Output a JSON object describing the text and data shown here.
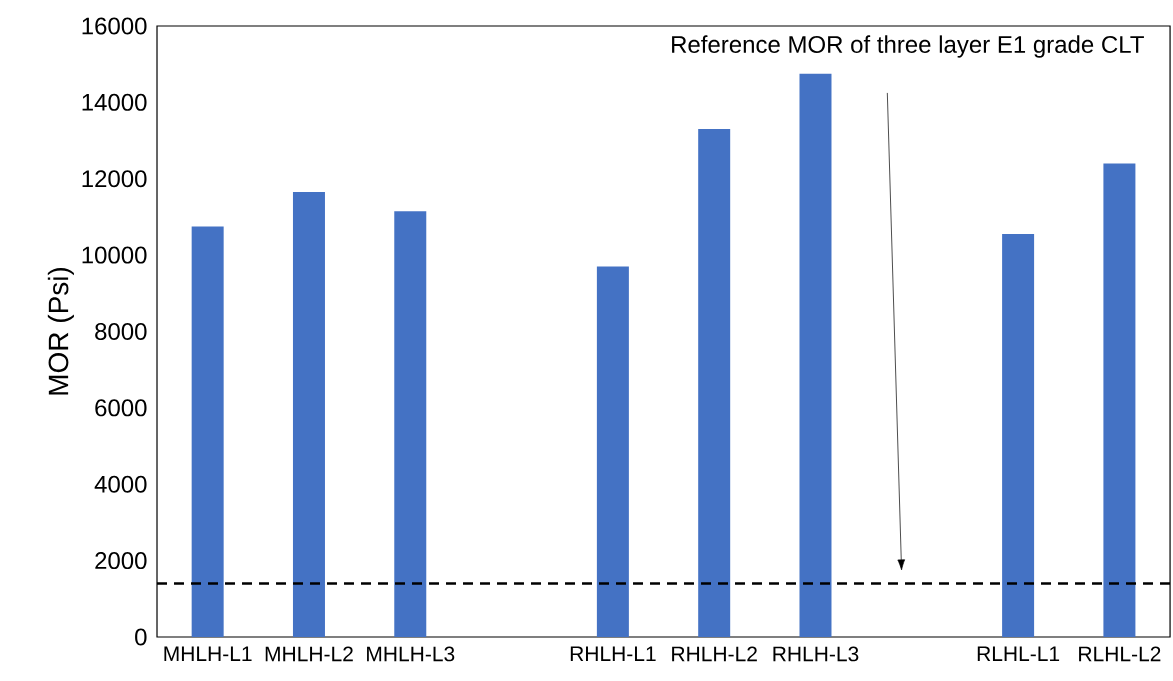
{
  "chart_data": {
    "type": "bar",
    "ylabel": "MOR (Psi)",
    "categories": [
      "MHLH-L1",
      "MHLH-L2",
      "MHLH-L3",
      null,
      "RHLH-L1",
      "RHLH-L2",
      "RHLH-L3",
      null,
      "RLHL-L1",
      "RLHL-L2"
    ],
    "values": [
      10750,
      11650,
      11150,
      null,
      9700,
      13300,
      14750,
      null,
      10550,
      12400
    ],
    "color": "#4472c4",
    "ylim": [
      0,
      16000
    ],
    "yticks": [
      0,
      2000,
      4000,
      6000,
      8000,
      10000,
      12000,
      14000,
      16000
    ],
    "ref_lines": [
      {
        "axis": "y",
        "value": 1400,
        "label": "Reference MOR of three layer E1 grade CLT",
        "color": "#000000",
        "line_style": "dashed"
      }
    ]
  }
}
